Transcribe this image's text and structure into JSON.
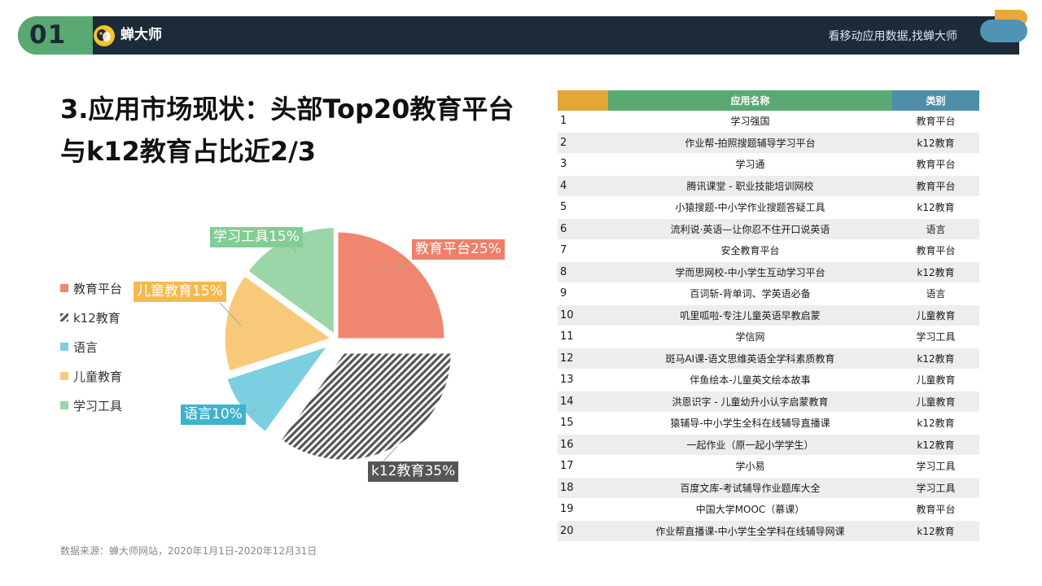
{
  "header": {
    "section_number": "01",
    "brand": "蝉大师",
    "slogan": "看移动应用数据,找蝉大师",
    "colors": {
      "bar": "#1c2b37",
      "number_bg": "#5aa872",
      "deco_yellow": "#e8a93a",
      "deco_blue": "#4f94b4"
    }
  },
  "title": "3.应用市场现状：头部Top20教育平台与k12教育占比近2/3",
  "chart_data": {
    "type": "pie",
    "legend_position": "left",
    "slices": [
      {
        "name": "教育平台",
        "value": 25,
        "label": "教育平台25%",
        "color": "#f0866f"
      },
      {
        "name": "k12教育",
        "value": 35,
        "label": "k12教育35%",
        "color": "#555555",
        "pattern": "diagonal-stripes"
      },
      {
        "name": "语言",
        "value": 10,
        "label": "语言10%",
        "color": "#7ccfe0"
      },
      {
        "name": "儿童教育",
        "value": 15,
        "label": "儿童教育15%",
        "color": "#f9c97a"
      },
      {
        "name": "学习工具",
        "value": 15,
        "label": "学习工具15%",
        "color": "#9ad6a7"
      }
    ]
  },
  "table": {
    "columns": [
      {
        "label": "",
        "color": "#e2a735"
      },
      {
        "label": "应用名称",
        "color": "#5aa872"
      },
      {
        "label": "类别",
        "color": "#4f8ea8"
      }
    ],
    "rows": [
      {
        "rank": "1",
        "name": "学习强国",
        "category": "教育平台"
      },
      {
        "rank": "2",
        "name": "作业帮-拍照搜题辅导学习平台",
        "category": "k12教育"
      },
      {
        "rank": "3",
        "name": "学习通",
        "category": "教育平台"
      },
      {
        "rank": "4",
        "name": "腾讯课堂 - 职业技能培训网校",
        "category": "教育平台"
      },
      {
        "rank": "5",
        "name": "小猿搜题-中小学作业搜题答疑工具",
        "category": "k12教育"
      },
      {
        "rank": "6",
        "name": "流利说·英语—让你忍不住开口说英语",
        "category": "语言"
      },
      {
        "rank": "7",
        "name": "安全教育平台",
        "category": "教育平台"
      },
      {
        "rank": "8",
        "name": "学而思网校-中小学生互动学习平台",
        "category": "k12教育"
      },
      {
        "rank": "9",
        "name": "百词斩-背单词、学英语必备",
        "category": "语言"
      },
      {
        "rank": "10",
        "name": "叽里呱啦-专注儿童英语早教启蒙",
        "category": "儿童教育"
      },
      {
        "rank": "11",
        "name": "学信网",
        "category": "学习工具"
      },
      {
        "rank": "12",
        "name": "斑马AI课-语文思维英语全学科素质教育",
        "category": "k12教育"
      },
      {
        "rank": "13",
        "name": "伴鱼绘本-儿童英文绘本故事",
        "category": "儿童教育"
      },
      {
        "rank": "14",
        "name": "洪恩识字 - 儿童幼升小认字启蒙教育",
        "category": "儿童教育"
      },
      {
        "rank": "15",
        "name": "猿辅导-中小学生全科在线辅导直播课",
        "category": "k12教育"
      },
      {
        "rank": "16",
        "name": "一起作业（原一起小学学生）",
        "category": "k12教育"
      },
      {
        "rank": "17",
        "name": "学小易",
        "category": "学习工具"
      },
      {
        "rank": "18",
        "name": "百度文库-考试辅导作业题库大全",
        "category": "学习工具"
      },
      {
        "rank": "19",
        "name": "中国大学MOOC（慕课）",
        "category": "教育平台"
      },
      {
        "rank": "20",
        "name": "作业帮直播课-中小学生全学科在线辅导网课",
        "category": "k12教育"
      }
    ]
  },
  "source": "数据来源：蝉大师网站，2020年1月1日-2020年12月31日"
}
